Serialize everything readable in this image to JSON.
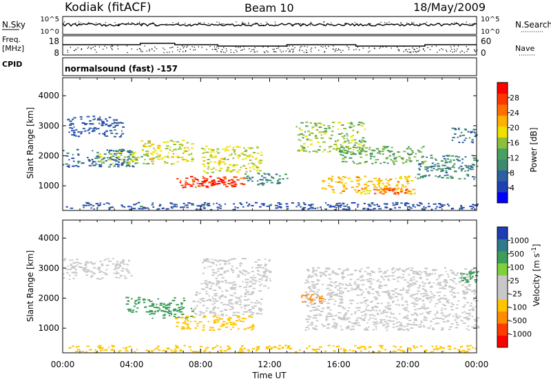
{
  "header": {
    "site": "Kodiak (fitACF)",
    "beam": "Beam 10",
    "date": "18/May/2009"
  },
  "labels": {
    "nsky": "N.Sky",
    "nsearch": "N.Search",
    "freq": "Freq.",
    "mhz": "[MHz]",
    "nave": "Nave",
    "cpid": "CPID",
    "mode": "normalsound (fast) -157",
    "xaxis": "Time UT",
    "ylabel": "Slant Range [km]",
    "power_label": "Power [dB]",
    "velocity_label": "Velocity"
  },
  "strip_axes": {
    "noise_left": [
      "10^5",
      "10^0"
    ],
    "noise_right": [
      "10^5",
      "10^0"
    ],
    "freq_left": [
      "18",
      "8"
    ],
    "nave_right": [
      "60",
      "0"
    ]
  },
  "chart_data": [
    {
      "type": "heatmap",
      "title": "Power",
      "ylabel": "Slant Range [km]",
      "xlabel": "Time UT",
      "x_ticks": [
        "00:00",
        "04:00",
        "08:00",
        "12:00",
        "16:00",
        "20:00",
        "00:00"
      ],
      "y_ticks": [
        1000,
        2000,
        3000,
        4000
      ],
      "ylim": [
        180,
        4600
      ],
      "colorbar": {
        "label": "Power [dB]",
        "ticks": [
          4,
          8,
          12,
          16,
          20,
          24,
          28
        ],
        "range": [
          0,
          32
        ]
      },
      "colors": [
        "#0000ff",
        "#1f3fb5",
        "#2e5fa0",
        "#3d8a6e",
        "#4aa060",
        "#8dbf3d",
        "#f0e000",
        "#ffb000",
        "#ff7000",
        "#ff3800",
        "#ff0000"
      ],
      "regions": [
        {
          "t": [
            0.0,
            4.2
          ],
          "r": [
            1600,
            2200
          ],
          "v": 8
        },
        {
          "t": [
            0.2,
            3.5
          ],
          "r": [
            2600,
            3300
          ],
          "v": 6
        },
        {
          "t": [
            2.0,
            5.0
          ],
          "r": [
            1700,
            2100
          ],
          "v": 16
        },
        {
          "t": [
            4.5,
            7.5
          ],
          "r": [
            1700,
            2500
          ],
          "v": 18
        },
        {
          "t": [
            6.5,
            10.5
          ],
          "r": [
            900,
            1300
          ],
          "v": 27
        },
        {
          "t": [
            7.5,
            10.0
          ],
          "r": [
            1000,
            1200
          ],
          "v": 30
        },
        {
          "t": [
            8.0,
            11.5
          ],
          "r": [
            1400,
            2300
          ],
          "v": 18
        },
        {
          "t": [
            10.5,
            13.0
          ],
          "r": [
            1000,
            1400
          ],
          "v": 10
        },
        {
          "t": [
            13.5,
            17.5
          ],
          "r": [
            2100,
            3100
          ],
          "v": 16
        },
        {
          "t": [
            15.0,
            20.5
          ],
          "r": [
            700,
            1300
          ],
          "v": 21
        },
        {
          "t": [
            18.0,
            20.0
          ],
          "r": [
            700,
            900
          ],
          "v": 26
        },
        {
          "t": [
            16.0,
            21.0
          ],
          "r": [
            1700,
            2300
          ],
          "v": 14
        },
        {
          "t": [
            20.5,
            24.0
          ],
          "r": [
            1200,
            2000
          ],
          "v": 10
        },
        {
          "t": [
            22.5,
            24.0
          ],
          "r": [
            2400,
            2900
          ],
          "v": 8
        },
        {
          "t": [
            0.0,
            24.0
          ],
          "r": [
            180,
            420
          ],
          "v": 6
        }
      ]
    },
    {
      "type": "heatmap",
      "title": "Velocity",
      "ylabel": "Slant Range [km]",
      "xlabel": "Time UT",
      "x_ticks": [
        "00:00",
        "04:00",
        "08:00",
        "12:00",
        "16:00",
        "20:00",
        "00:00"
      ],
      "y_ticks": [
        1000,
        2000,
        3000,
        4000
      ],
      "ylim": [
        180,
        4600
      ],
      "colorbar": {
        "label": "Velocity [m s-1]",
        "ticks": [
          "1000",
          "500",
          "100",
          "25",
          "-25",
          "-100",
          "-500",
          "-1000"
        ]
      },
      "colors": [
        "#ff0000",
        "#ff3c00",
        "#ff8c00",
        "#ffc400",
        "#c8c8c8",
        "#c8c8c8",
        "#7fd13b",
        "#3d9e5a",
        "#2f7a8a",
        "#1e3cb4"
      ],
      "regions": [
        {
          "t": [
            0.0,
            4.0
          ],
          "r": [
            2600,
            3300
          ],
          "v": 0
        },
        {
          "t": [
            3.5,
            7.0
          ],
          "r": [
            1500,
            2000
          ],
          "v": 300
        },
        {
          "t": [
            5.0,
            7.5
          ],
          "r": [
            1300,
            1700
          ],
          "v": 200
        },
        {
          "t": [
            6.5,
            11.0
          ],
          "r": [
            900,
            1400
          ],
          "v": -40
        },
        {
          "t": [
            7.5,
            11.5
          ],
          "r": [
            1400,
            2300
          ],
          "v": 0
        },
        {
          "t": [
            8.0,
            12.0
          ],
          "r": [
            2300,
            3300
          ],
          "v": 10
        },
        {
          "t": [
            13.8,
            15.0
          ],
          "r": [
            1800,
            2100
          ],
          "v": -200
        },
        {
          "t": [
            14.0,
            24.0
          ],
          "r": [
            900,
            3000
          ],
          "v": 0
        },
        {
          "t": [
            23.0,
            24.0
          ],
          "r": [
            2500,
            2900
          ],
          "v": 200
        },
        {
          "t": [
            0.0,
            24.0
          ],
          "r": [
            180,
            400
          ],
          "v": -60
        }
      ]
    }
  ]
}
